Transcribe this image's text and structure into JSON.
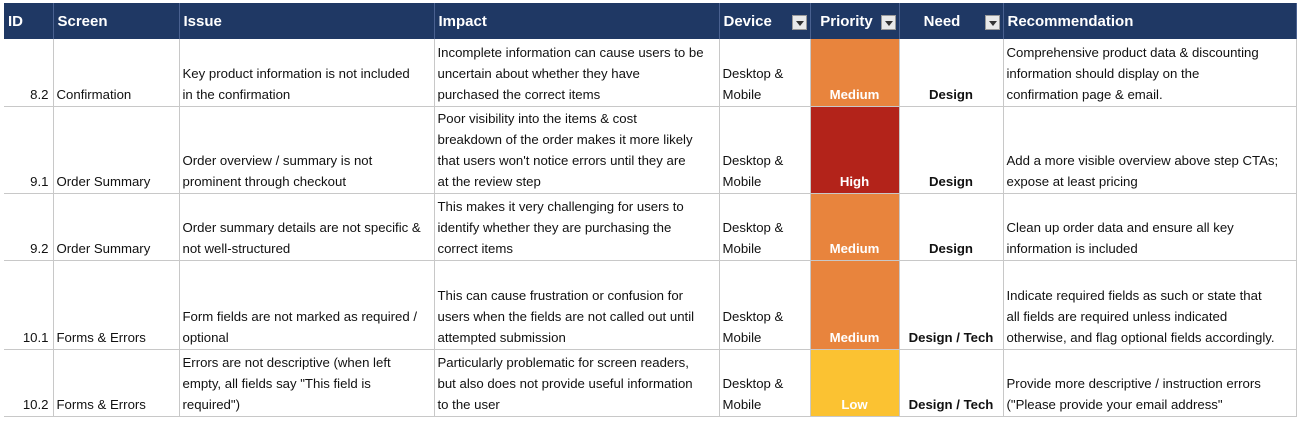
{
  "headers": {
    "id": "ID",
    "screen": "Screen",
    "issue": "Issue",
    "impact": "Impact",
    "device": "Device",
    "priority": "Priority",
    "need": "Need",
    "recommendation": "Recommendation"
  },
  "filter_icon": "dropdown-filter-icon",
  "priority_colors": {
    "Medium": "#e8843d",
    "High": "#b3231a",
    "Low": "#fbc232"
  },
  "rows": [
    {
      "id": "8.2",
      "screen": "Confirmation",
      "issue": [
        "Key product information is not included",
        "in the confirmation"
      ],
      "impact": [
        "Incomplete information can cause users to be",
        "uncertain about whether they have",
        "purchased the correct items"
      ],
      "device": [
        "Desktop &",
        "Mobile"
      ],
      "priority": "Medium",
      "need": "Design",
      "recommendation": [
        "Comprehensive product data & discounting",
        "information should display on the",
        "confirmation page & email."
      ]
    },
    {
      "id": "9.1",
      "screen": "Order Summary",
      "issue": [
        "Order overview / summary is not",
        "prominent through checkout"
      ],
      "impact": [
        "Poor visibility into the items & cost",
        "breakdown of the order makes it more likely",
        "that users won't notice errors until they are",
        "at the review step"
      ],
      "device": [
        "Desktop &",
        "Mobile"
      ],
      "priority": "High",
      "need": "Design",
      "recommendation": [
        "Add a more visible overview above step CTAs;",
        "expose at least pricing"
      ]
    },
    {
      "id": "9.2",
      "screen": "Order Summary",
      "issue": [
        "Order summary details are not specific &",
        "not well-structured"
      ],
      "impact": [
        "This makes it very challenging for users to",
        "identify whether they are purchasing the",
        "correct items"
      ],
      "device": [
        "Desktop &",
        "Mobile"
      ],
      "priority": "Medium",
      "need": "Design",
      "recommendation": [
        "Clean up order data and ensure all key",
        "information is included"
      ]
    },
    {
      "id": "10.1",
      "screen": "Forms & Errors",
      "issue": [
        "Form fields are not marked as required /",
        "optional"
      ],
      "impact": [
        "This can cause frustration or confusion for",
        "users when the fields are not called out until",
        "attempted submission"
      ],
      "device": [
        "Desktop &",
        "Mobile"
      ],
      "priority": "Medium",
      "need": "Design / Tech",
      "recommendation": [
        "Indicate required fields as such or state that",
        "all fields are required unless indicated",
        "otherwise, and flag optional fields accordingly."
      ]
    },
    {
      "id": "10.2",
      "screen": "Forms & Errors",
      "issue": [
        "Errors are not descriptive (when left",
        "empty, all fields say \"This field is",
        "required\")"
      ],
      "impact": [
        "Particularly problematic for screen readers,",
        "but also does not provide useful information",
        "to the user"
      ],
      "device": [
        "Desktop &",
        "Mobile"
      ],
      "priority": "Low",
      "need": "Design / Tech",
      "recommendation": [
        "Provide more descriptive / instruction errors",
        "(\"Please provide your email address\""
      ]
    }
  ]
}
